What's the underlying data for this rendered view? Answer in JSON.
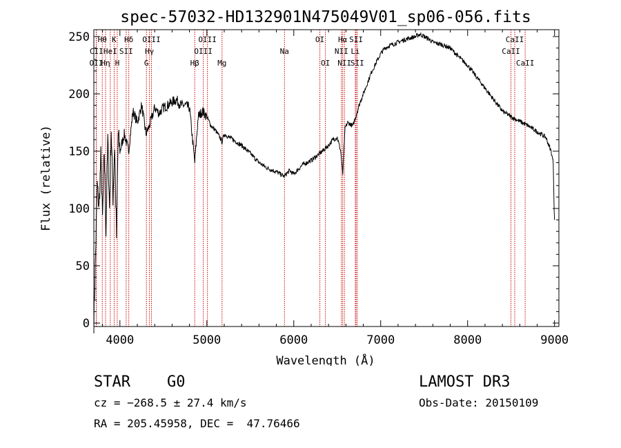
{
  "chart_data": {
    "type": "line",
    "title": "spec-57032-HD132901N475049V01_sp06-056.fits",
    "xlabel": "Wavelength (Å)",
    "ylabel": "Flux (relative)",
    "xlim": [
      3700,
      9050
    ],
    "ylim": [
      -3,
      256
    ],
    "xticks": [
      4000,
      5000,
      6000,
      7000,
      8000,
      9000
    ],
    "yticks": [
      0,
      50,
      100,
      150,
      200,
      250
    ],
    "series": [
      {
        "name": "spectrum",
        "x": [
          3700,
          3720,
          3740,
          3760,
          3780,
          3800,
          3820,
          3840,
          3860,
          3880,
          3900,
          3920,
          3940,
          3960,
          3980,
          4000,
          4050,
          4100,
          4150,
          4200,
          4250,
          4300,
          4340,
          4400,
          4450,
          4500,
          4550,
          4600,
          4650,
          4700,
          4750,
          4800,
          4861,
          4900,
          4950,
          5000,
          5050,
          5100,
          5150,
          5175,
          5200,
          5300,
          5400,
          5500,
          5600,
          5700,
          5800,
          5890,
          5950,
          6000,
          6100,
          6200,
          6300,
          6400,
          6450,
          6500,
          6540,
          6563,
          6590,
          6620,
          6680,
          6720,
          6760,
          6800,
          6900,
          7000,
          7050,
          7100,
          7200,
          7300,
          7400,
          7450,
          7500,
          7550,
          7600,
          7700,
          7800,
          7900,
          8000,
          8100,
          8200,
          8300,
          8400,
          8500,
          8600,
          8700,
          8800,
          8900,
          8960,
          8985,
          8995,
          9000
        ],
        "y": [
          2,
          60,
          120,
          100,
          145,
          90,
          150,
          80,
          160,
          100,
          170,
          110,
          155,
          75,
          165,
          150,
          165,
          150,
          185,
          175,
          190,
          165,
          172,
          188,
          183,
          188,
          190,
          193,
          195,
          190,
          190,
          188,
          140,
          180,
          185,
          180,
          172,
          168,
          162,
          158,
          165,
          160,
          155,
          148,
          140,
          135,
          132,
          128,
          133,
          130,
          138,
          142,
          148,
          155,
          160,
          162,
          150,
          130,
          170,
          175,
          172,
          182,
          192,
          200,
          220,
          235,
          240,
          242,
          245,
          248,
          250,
          252,
          250,
          248,
          245,
          243,
          240,
          232,
          225,
          215,
          205,
          195,
          185,
          180,
          176,
          172,
          167,
          162,
          150,
          140,
          100,
          90
        ]
      }
    ],
    "line_markers": [
      {
        "label": "CII",
        "wavelength": 3730,
        "row": 2
      },
      {
        "label": "OII",
        "wavelength": 3727,
        "row": 3
      },
      {
        "label": "Hθ",
        "wavelength": 3797,
        "row": 1
      },
      {
        "label": "Hη",
        "wavelength": 3835,
        "row": 3
      },
      {
        "label": "HeI",
        "wavelength": 3889,
        "row": 2
      },
      {
        "label": "K",
        "wavelength": 3934,
        "row": 1
      },
      {
        "label": "H",
        "wavelength": 3969,
        "row": 3
      },
      {
        "label": "SII",
        "wavelength": 4072,
        "row": 2
      },
      {
        "label": "Hδ",
        "wavelength": 4102,
        "row": 1
      },
      {
        "label": "OIII",
        "wavelength": 4363,
        "row": 1
      },
      {
        "label": "Hγ",
        "wavelength": 4340,
        "row": 2
      },
      {
        "label": "G",
        "wavelength": 4305,
        "row": 3
      },
      {
        "label": "Hβ",
        "wavelength": 4861,
        "row": 3
      },
      {
        "label": "OIII",
        "wavelength": 4959,
        "row": 2
      },
      {
        "label": "OIII",
        "wavelength": 5007,
        "row": 1
      },
      {
        "label": "Mg",
        "wavelength": 5175,
        "row": 3
      },
      {
        "label": "Na",
        "wavelength": 5893,
        "row": 2
      },
      {
        "label": "OI",
        "wavelength": 6300,
        "row": 1
      },
      {
        "label": "OI",
        "wavelength": 6364,
        "row": 3
      },
      {
        "label": "NII",
        "wavelength": 6548,
        "row": 2
      },
      {
        "label": "Hα",
        "wavelength": 6563,
        "row": 1
      },
      {
        "label": "NII",
        "wavelength": 6583,
        "row": 3
      },
      {
        "label": "SII",
        "wavelength": 6717,
        "row": 1
      },
      {
        "label": "Li",
        "wavelength": 6708,
        "row": 2
      },
      {
        "label": "SII",
        "wavelength": 6731,
        "row": 3
      },
      {
        "label": "CaII",
        "wavelength": 8498,
        "row": 2
      },
      {
        "label": "CaII",
        "wavelength": 8542,
        "row": 1
      },
      {
        "label": "CaII",
        "wavelength": 8662,
        "row": 3
      }
    ]
  },
  "info": {
    "class": "STAR",
    "subclass": "G0",
    "survey": "LAMOST DR3",
    "cz": "cz = −268.5 ± 27.4 km/s",
    "obs_date": "Obs-Date: 20150109",
    "coords": "RA = 205.45958, DEC =  47.76466"
  },
  "colors": {
    "spectrum": "#000000",
    "marker": "#cc0000",
    "axes": "#000000"
  }
}
